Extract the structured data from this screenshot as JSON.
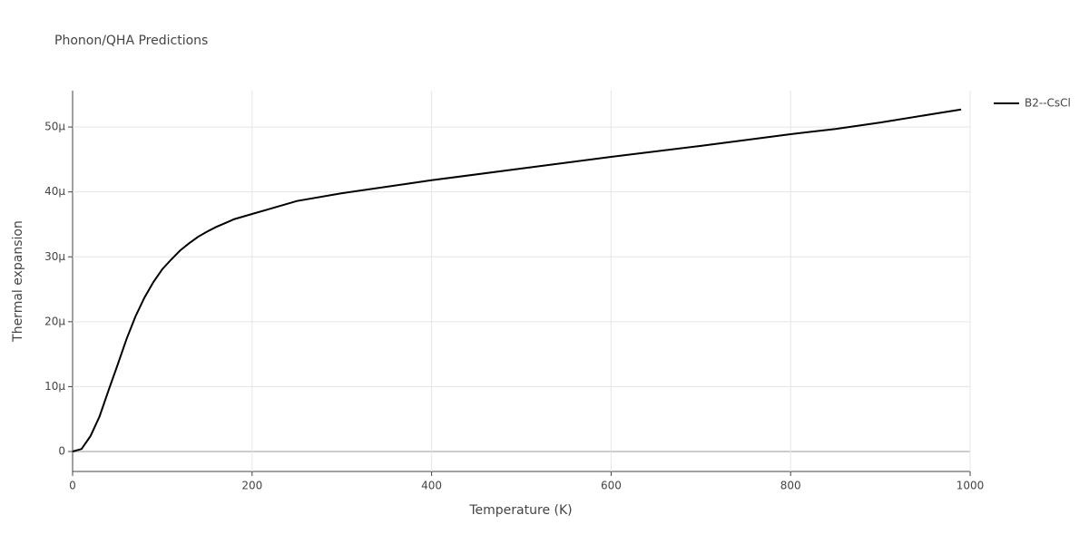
{
  "chart_data": {
    "type": "line",
    "title": "Phonon/QHA Predictions",
    "x_label": "Temperature (K)",
    "y_label": "Thermal expansion",
    "x": [
      0,
      10,
      20,
      30,
      40,
      50,
      60,
      70,
      80,
      90,
      100,
      110,
      120,
      130,
      140,
      150,
      160,
      170,
      180,
      190,
      200,
      220,
      250,
      300,
      375,
      400,
      500,
      600,
      700,
      800,
      850,
      900,
      990
    ],
    "series": [
      {
        "name": "B2--CsCl",
        "color": "#000000",
        "values": [
          0,
          4e-07,
          2.4e-06,
          5.4e-06,
          9.4e-06,
          1.33e-05,
          1.73e-05,
          2.08e-05,
          2.37e-05,
          2.61e-05,
          2.81e-05,
          2.96e-05,
          3.1e-05,
          3.21e-05,
          3.31e-05,
          3.39e-05,
          3.46e-05,
          3.52e-05,
          3.58e-05,
          3.62e-05,
          3.66e-05,
          3.74e-05,
          3.86e-05,
          3.98e-05,
          4.13e-05,
          4.18e-05,
          4.36e-05,
          4.54e-05,
          4.71e-05,
          4.89e-05,
          4.97e-05,
          5.07e-05,
          5.27e-05
        ]
      }
    ],
    "xlim": [
      0,
      1000
    ],
    "xticks": [
      0,
      200,
      400,
      600,
      800,
      1000
    ],
    "ylim": [
      -3.07e-06,
      5.56e-05
    ],
    "yticks": [
      0,
      {
        "value": 1e-05,
        "label": "10μ"
      },
      {
        "value": 2e-05,
        "label": "20μ"
      },
      {
        "value": 3e-05,
        "label": "30μ"
      },
      {
        "value": 4e-05,
        "label": "40μ"
      },
      {
        "value": 5e-05,
        "label": "50μ"
      }
    ],
    "grid": true,
    "legend": "top-right"
  }
}
